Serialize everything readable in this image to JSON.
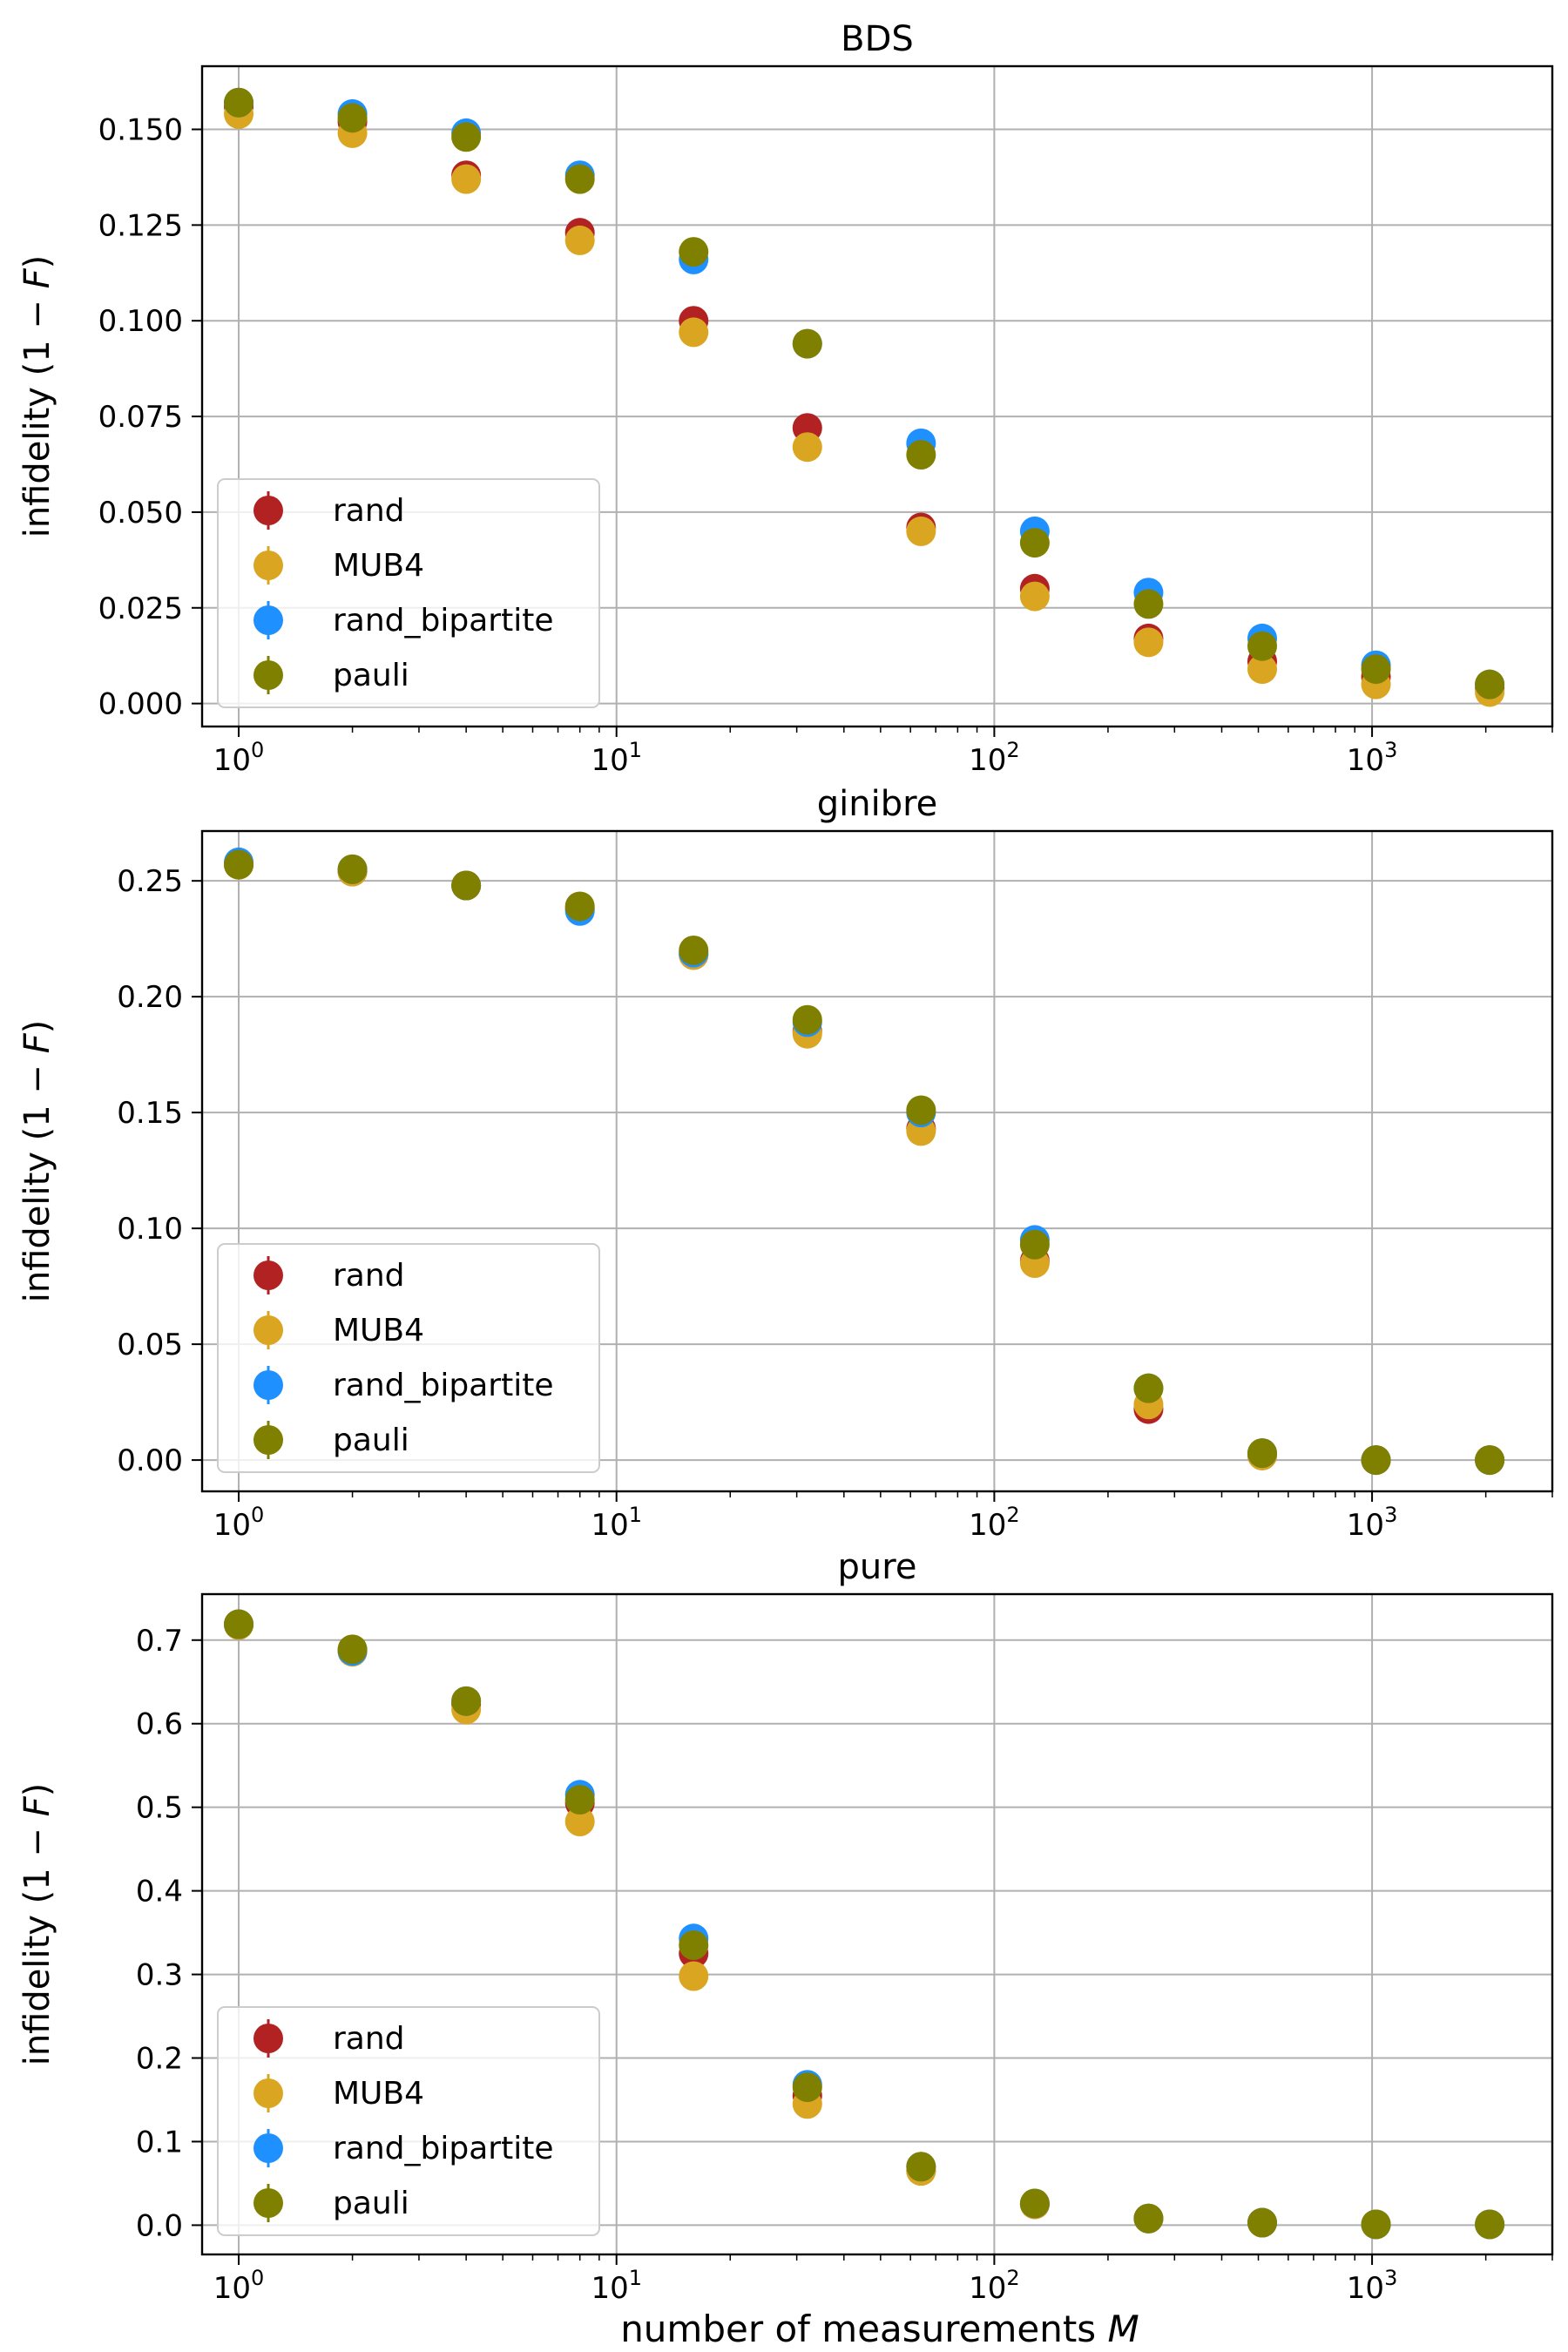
{
  "figure": {
    "xlabel": "number of measurements",
    "xlabel_var": "M",
    "ylabel": "infidelity (1 − ",
    "ylabel_var": "F",
    "ylabel_close": ")"
  },
  "chart_data": [
    {
      "type": "scatter",
      "title": "BDS",
      "xscale": "log",
      "xlim": [
        0.8,
        3000
      ],
      "ylim": [
        -0.006,
        0.1665
      ],
      "xticks": [
        1,
        10,
        100,
        1000
      ],
      "xtick_base": "10",
      "xtick_exp": [
        "0",
        "1",
        "2",
        "3"
      ],
      "yticks": [
        0,
        0.025,
        0.05,
        0.075,
        0.1,
        0.125,
        0.15
      ],
      "ytick_labels": [
        "0.000",
        "0.025",
        "0.050",
        "0.075",
        "0.100",
        "0.125",
        "0.150"
      ],
      "grid": true,
      "legend": "lower-left",
      "x": [
        1,
        2,
        4,
        8,
        16,
        32,
        64,
        128,
        256,
        512,
        1024,
        2048
      ],
      "series": [
        {
          "name": "rand",
          "color": "#b22222",
          "values": [
            0.156,
            0.152,
            0.138,
            0.123,
            0.1,
            0.072,
            0.046,
            0.03,
            0.017,
            0.011,
            0.007,
            0.004
          ]
        },
        {
          "name": "MUB4",
          "color": "#daa520",
          "values": [
            0.154,
            0.149,
            0.137,
            0.121,
            0.097,
            0.067,
            0.045,
            0.028,
            0.016,
            0.009,
            0.005,
            0.003
          ]
        },
        {
          "name": "rand_bipartite",
          "color": "#1e90ff",
          "values": [
            0.157,
            0.154,
            0.149,
            0.138,
            0.116,
            0.094,
            0.068,
            0.045,
            0.029,
            0.017,
            0.01,
            0.005
          ]
        },
        {
          "name": "pauli",
          "color": "#808000",
          "values": [
            0.157,
            0.153,
            0.148,
            0.137,
            0.118,
            0.094,
            0.065,
            0.042,
            0.026,
            0.015,
            0.009,
            0.005
          ]
        }
      ]
    },
    {
      "type": "scatter",
      "title": "ginibre",
      "xscale": "log",
      "xlim": [
        0.8,
        3000
      ],
      "ylim": [
        -0.0135,
        0.2715
      ],
      "xticks": [
        1,
        10,
        100,
        1000
      ],
      "xtick_base": "10",
      "xtick_exp": [
        "0",
        "1",
        "2",
        "3"
      ],
      "yticks": [
        0,
        0.05,
        0.1,
        0.15,
        0.2,
        0.25
      ],
      "ytick_labels": [
        "0.00",
        "0.05",
        "0.10",
        "0.15",
        "0.20",
        "0.25"
      ],
      "grid": true,
      "legend": "lower-left",
      "x": [
        1,
        2,
        4,
        8,
        16,
        32,
        64,
        128,
        256,
        512,
        1024,
        2048
      ],
      "series": [
        {
          "name": "rand",
          "color": "#b22222",
          "values": [
            0.257,
            0.254,
            0.248,
            0.238,
            0.218,
            0.185,
            0.143,
            0.086,
            0.022,
            0.002,
            0.0,
            0.0
          ]
        },
        {
          "name": "MUB4",
          "color": "#daa520",
          "values": [
            0.257,
            0.254,
            0.248,
            0.238,
            0.218,
            0.184,
            0.142,
            0.085,
            0.024,
            0.002,
            0.0,
            0.0
          ]
        },
        {
          "name": "rand_bipartite",
          "color": "#1e90ff",
          "values": [
            0.258,
            0.255,
            0.248,
            0.237,
            0.219,
            0.189,
            0.15,
            0.095,
            0.031,
            0.003,
            0.0,
            0.0
          ]
        },
        {
          "name": "pauli",
          "color": "#808000",
          "values": [
            0.257,
            0.255,
            0.248,
            0.239,
            0.22,
            0.19,
            0.151,
            0.093,
            0.031,
            0.003,
            0.0,
            0.0
          ]
        }
      ]
    },
    {
      "type": "scatter",
      "title": "pure",
      "xscale": "log",
      "xlim": [
        0.8,
        3000
      ],
      "ylim": [
        -0.035,
        0.755
      ],
      "xticks": [
        1,
        10,
        100,
        1000
      ],
      "xtick_base": "10",
      "xtick_exp": [
        "0",
        "1",
        "2",
        "3"
      ],
      "yticks": [
        0,
        0.1,
        0.2,
        0.3,
        0.4,
        0.5,
        0.6,
        0.7
      ],
      "ytick_labels": [
        "0.0",
        "0.1",
        "0.2",
        "0.3",
        "0.4",
        "0.5",
        "0.6",
        "0.7"
      ],
      "grid": true,
      "legend": "lower-left",
      "x": [
        1,
        2,
        4,
        8,
        16,
        32,
        64,
        128,
        256,
        512,
        1024,
        2048
      ],
      "series": [
        {
          "name": "rand",
          "color": "#b22222",
          "values": [
            0.719,
            0.688,
            0.623,
            0.505,
            0.325,
            0.155,
            0.065,
            0.025,
            0.008,
            0.003,
            0.001,
            0.001
          ]
        },
        {
          "name": "MUB4",
          "color": "#daa520",
          "values": [
            0.718,
            0.686,
            0.617,
            0.483,
            0.298,
            0.145,
            0.065,
            0.025,
            0.008,
            0.003,
            0.001,
            0.001
          ]
        },
        {
          "name": "rand_bipartite",
          "color": "#1e90ff",
          "values": [
            0.719,
            0.687,
            0.627,
            0.515,
            0.343,
            0.168,
            0.07,
            0.026,
            0.008,
            0.003,
            0.001,
            0.001
          ]
        },
        {
          "name": "pauli",
          "color": "#808000",
          "values": [
            0.719,
            0.689,
            0.627,
            0.509,
            0.335,
            0.165,
            0.07,
            0.026,
            0.008,
            0.003,
            0.001,
            0.001
          ]
        }
      ]
    }
  ]
}
